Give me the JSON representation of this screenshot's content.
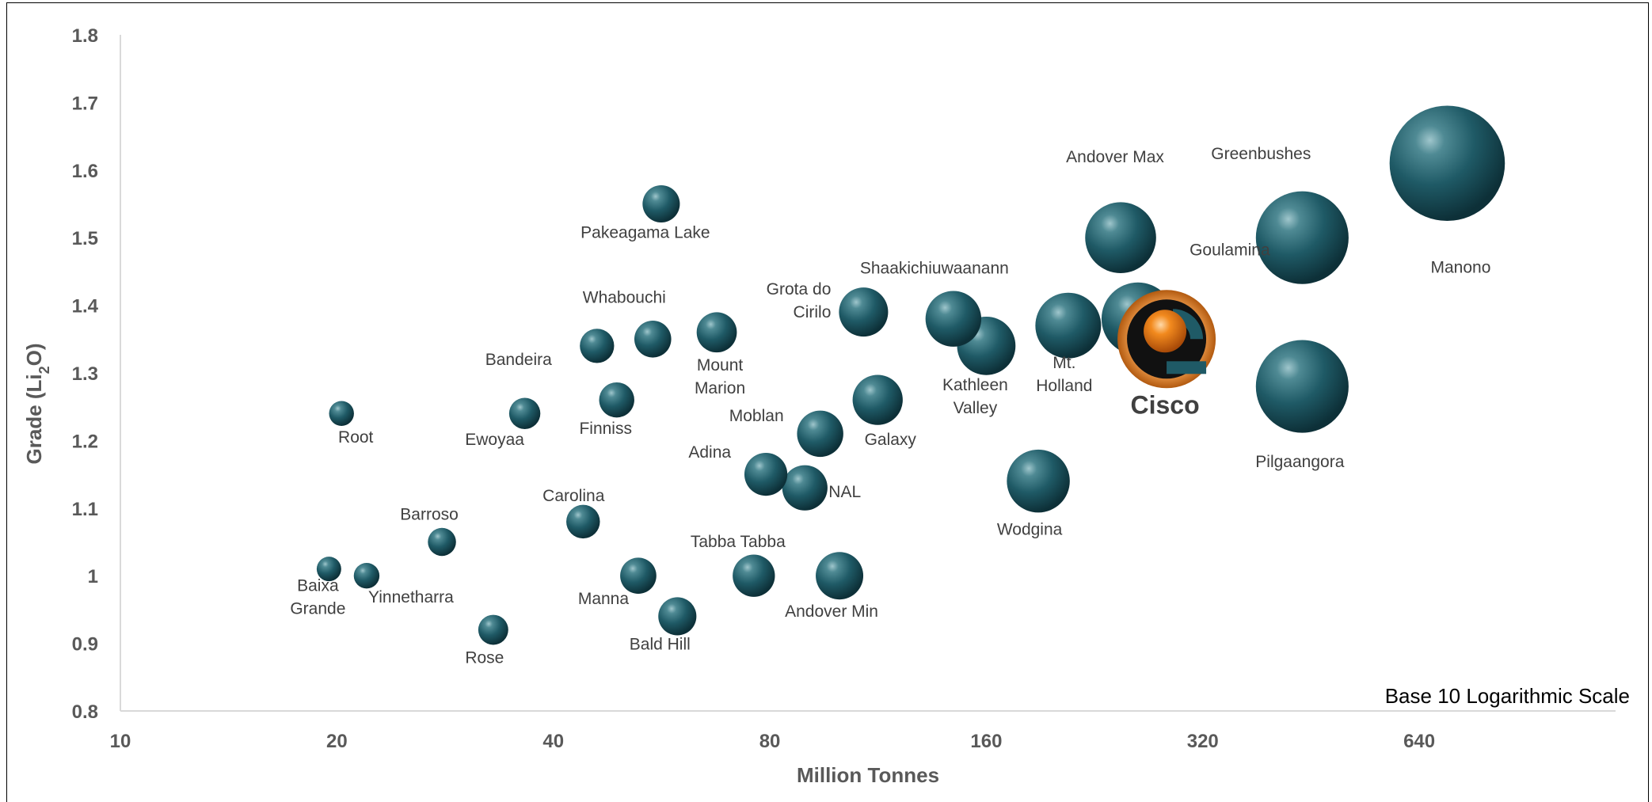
{
  "chart_data": {
    "type": "scatter",
    "xlabel": "Million Tonnes",
    "ylabel": "Grade (Li",
    "ylabel_sub": "2",
    "ylabel_end": "O)",
    "x_scale": "log10",
    "x_ticks": [
      10,
      20,
      40,
      80,
      160,
      320,
      640
    ],
    "x_tick_labels": [
      "10",
      "20",
      "40",
      "80",
      "160",
      "320",
      "640"
    ],
    "xlim": [
      10,
      1200
    ],
    "ylim": [
      0.8,
      1.8
    ],
    "y_ticks": [
      0.8,
      0.9,
      1,
      1.1,
      1.2,
      1.3,
      1.4,
      1.5,
      1.6,
      1.7,
      1.8
    ],
    "y_tick_labels": [
      "0.8",
      "0.9",
      "1",
      "1.1",
      "1.2",
      "1.3",
      "1.4",
      "1.5",
      "1.6",
      "1.7",
      "1.8"
    ],
    "annotation": "Base 10 Logarithmic Scale",
    "grid": false,
    "bubble_color": "#1f5a66",
    "highlight_color": "#e07a1f",
    "points": [
      {
        "name": "Root",
        "lines": [
          "Root"
        ],
        "x": 20.3,
        "y": 1.24,
        "size": 20.3
      },
      {
        "name": "Baixa Grande",
        "lines": [
          "Baixa",
          "Grande"
        ],
        "x": 19.5,
        "y": 1.01,
        "size": 19.5
      },
      {
        "name": "Yinnetharra",
        "lines": [
          "Yinnetharra"
        ],
        "x": 22,
        "y": 1.0,
        "size": 22
      },
      {
        "name": "Barroso",
        "lines": [
          "Barroso"
        ],
        "x": 28,
        "y": 1.05,
        "size": 28
      },
      {
        "name": "Rose",
        "lines": [
          "Rose"
        ],
        "x": 33,
        "y": 0.92,
        "size": 33
      },
      {
        "name": "Eweyaa",
        "lines": [
          "Ewoyaa"
        ],
        "x": 36.5,
        "y": 1.24,
        "size": 36.5
      },
      {
        "name": "Carolina",
        "lines": [
          "Carolina"
        ],
        "x": 44,
        "y": 1.08,
        "size": 44
      },
      {
        "name": "Bandeira",
        "lines": [
          "Bandeira"
        ],
        "x": 46,
        "y": 1.34,
        "size": 46
      },
      {
        "name": "Finniss",
        "lines": [
          "Finniss"
        ],
        "x": 49,
        "y": 1.26,
        "size": 49
      },
      {
        "name": "Manna",
        "lines": [
          "Manna"
        ],
        "x": 52.5,
        "y": 1.0,
        "size": 52.5
      },
      {
        "name": "Whabouchi",
        "lines": [
          "Whabouchi"
        ],
        "x": 55,
        "y": 1.35,
        "size": 55
      },
      {
        "name": "Pakeagama Lake",
        "lines": [
          "Pakeagama Lake"
        ],
        "x": 56.5,
        "y": 1.55,
        "size": 56.5
      },
      {
        "name": "Bald Hill",
        "lines": [
          "Bald Hill"
        ],
        "x": 59.5,
        "y": 0.94,
        "size": 59.5
      },
      {
        "name": "Mount Marion",
        "lines": [
          "Mount",
          "Marion"
        ],
        "x": 67.5,
        "y": 1.36,
        "size": 67.5
      },
      {
        "name": "Tabba Tabba",
        "lines": [
          "Tabba Tabba"
        ],
        "x": 76,
        "y": 1.0,
        "size": 76
      },
      {
        "name": "Adina",
        "lines": [
          "Adina"
        ],
        "x": 79,
        "y": 1.15,
        "size": 79
      },
      {
        "name": "NAL",
        "lines": [
          "NAL"
        ],
        "x": 89.5,
        "y": 1.13,
        "size": 89.5
      },
      {
        "name": "Moblan",
        "lines": [
          "Moblan"
        ],
        "x": 94,
        "y": 1.21,
        "size": 94
      },
      {
        "name": "Andover Min",
        "lines": [
          "Andover Min"
        ],
        "x": 100,
        "y": 1.0,
        "size": 100
      },
      {
        "name": "Grota do Cirilo",
        "lines": [
          "Grota do",
          "Cirilo"
        ],
        "x": 108,
        "y": 1.39,
        "size": 108
      },
      {
        "name": "Galaxy",
        "lines": [
          "Galaxy"
        ],
        "x": 113,
        "y": 1.26,
        "size": 113
      },
      {
        "name": "Shaakichiuwaanann",
        "lines": [
          "Shaakichiuwaanann"
        ],
        "x": 144,
        "y": 1.38,
        "size": 144
      },
      {
        "name": "Kathleen Valley",
        "lines": [
          "Kathleen",
          "Valley"
        ],
        "x": 160,
        "y": 1.34,
        "size": 160
      },
      {
        "name": "Wodgina",
        "lines": [
          "Wodgina"
        ],
        "x": 189,
        "y": 1.14,
        "size": 189
      },
      {
        "name": "Mt. Holland",
        "lines": [
          "Mt.",
          "Holland"
        ],
        "x": 208,
        "y": 1.37,
        "size": 208
      },
      {
        "name": "Goulamina",
        "lines": [
          "Goulamina"
        ],
        "x": 260,
        "y": 1.38,
        "size": 260
      },
      {
        "name": "Andover Max",
        "lines": [
          "Andover Max"
        ],
        "x": 246,
        "y": 1.5,
        "size": 246
      },
      {
        "name": "Greenbushes",
        "lines": [
          "Greenbushes"
        ],
        "x": 440,
        "y": 1.5,
        "size": 440
      },
      {
        "name": "Pilgaangora",
        "lines": [
          "Pilgaangora"
        ],
        "x": 440,
        "y": 1.28,
        "size": 440
      },
      {
        "name": "Manono",
        "lines": [
          "Manono"
        ],
        "x": 700,
        "y": 1.61,
        "size": 700
      }
    ],
    "highlight": {
      "name": "Cisco",
      "label": "Cisco",
      "x": 285,
      "y": 1.35
    }
  }
}
